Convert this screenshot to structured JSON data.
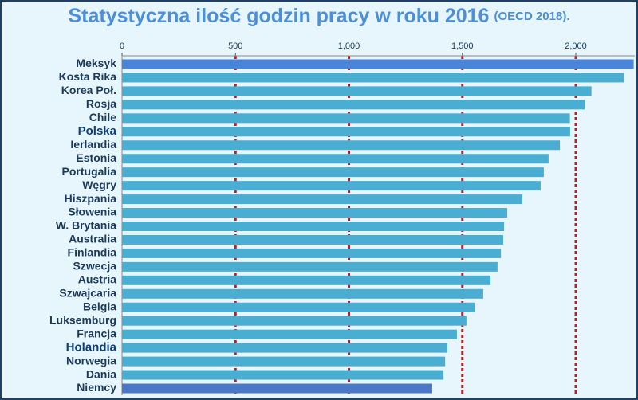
{
  "chart_data": {
    "type": "hbar",
    "title": "Statystyczna ilość godzin pracy w roku 2016",
    "subtitle": "(OECD 2018).",
    "categories": [
      "Meksyk",
      "Kosta Rika",
      "Korea Poł.",
      "Rosja",
      "Chile",
      "Polska",
      "Ierlandia",
      "Estonia",
      "Portugalia",
      "Węgry",
      "Hiszpania",
      "Słowenia",
      "W. Brytania",
      "Australia",
      "Finlandia",
      "Szwecja",
      "Austria",
      "Szwajcaria",
      "Belgia",
      "Luksemburg",
      "Francja",
      "Holandia",
      "Norwegia",
      "Dania",
      "Niemcy"
    ],
    "values": [
      2255,
      2212,
      2069,
      2039,
      1974,
      1975,
      1930,
      1880,
      1859,
      1845,
      1764,
      1698,
      1684,
      1680,
      1670,
      1655,
      1624,
      1592,
      1554,
      1518,
      1476,
      1434,
      1424,
      1417,
      1367
    ],
    "colors": [
      "#4a84d6",
      "#4aaed3",
      "#4aaed3",
      "#4aaed3",
      "#4aaed3",
      "#4aaed3",
      "#4aaed3",
      "#4aaed3",
      "#4aaed3",
      "#4aaed3",
      "#4aaed3",
      "#4aaed3",
      "#4aaed3",
      "#4aaed3",
      "#4aaed3",
      "#4aaed3",
      "#4aaed3",
      "#4aaed3",
      "#4aaed3",
      "#4aaed3",
      "#4aaed3",
      "#4aaed3",
      "#4aaed3",
      "#4aaed3",
      "#4a78c6"
    ],
    "bold_labels": [
      5,
      21
    ],
    "xlim": [
      0,
      2260
    ],
    "xticks": [
      0,
      500,
      {
        "value": 1000,
        "label": "1,000"
      },
      {
        "value": 1500,
        "label": "1,500"
      },
      {
        "value": 2000,
        "label": "2,000"
      }
    ],
    "grid": true
  }
}
